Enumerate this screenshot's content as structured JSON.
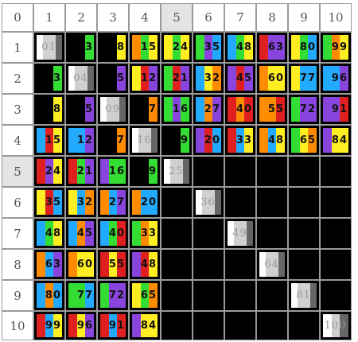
{
  "corner": {
    "label": "0"
  },
  "columns": [
    "1",
    "2",
    "3",
    "4",
    "5",
    "6",
    "7",
    "8",
    "9",
    "10"
  ],
  "rows": [
    "1",
    "2",
    "3",
    "4",
    "5",
    "6",
    "7",
    "8",
    "9",
    "10"
  ],
  "highlighted_header": "5",
  "colors": {
    "red": "#e02020",
    "orange": "#ff8c00",
    "yellow": "#ffee22",
    "green": "#33dd33",
    "blue": "#22aaff",
    "purple": "#8844dd",
    "black": "#000000",
    "white": "#ffffff",
    "light_gray": "#d0d0d0",
    "dark_gray": "#666666"
  },
  "products": [
    [
      "01",
      "3",
      "8",
      "15",
      "24",
      "35",
      "48",
      "63",
      "80",
      "99"
    ],
    [
      "3",
      "04",
      "5",
      "12",
      "21",
      "32",
      "45",
      "60",
      "77",
      "96"
    ],
    [
      "8",
      "5",
      "09",
      "7",
      "16",
      "27",
      "40",
      "55",
      "72",
      "91"
    ],
    [
      "15",
      "12",
      "7",
      "16",
      "9",
      "20",
      "33",
      "48",
      "65",
      "84"
    ],
    [
      "24",
      "21",
      "16",
      "9",
      "25",
      "",
      "",
      "",
      "",
      ""
    ],
    [
      "35",
      "32",
      "27",
      "20",
      "",
      "36",
      "",
      "",
      "",
      ""
    ],
    [
      "48",
      "45",
      "40",
      "33",
      "",
      "",
      "49",
      "",
      "",
      ""
    ],
    [
      "63",
      "60",
      "55",
      "48",
      "",
      "",
      "",
      "64",
      "",
      ""
    ],
    [
      "80",
      "77",
      "72",
      "65",
      "",
      "",
      "",
      "",
      "81",
      ""
    ],
    [
      "99",
      "96",
      "91",
      "84",
      "",
      "",
      "",
      "",
      "",
      "100"
    ]
  ]
}
